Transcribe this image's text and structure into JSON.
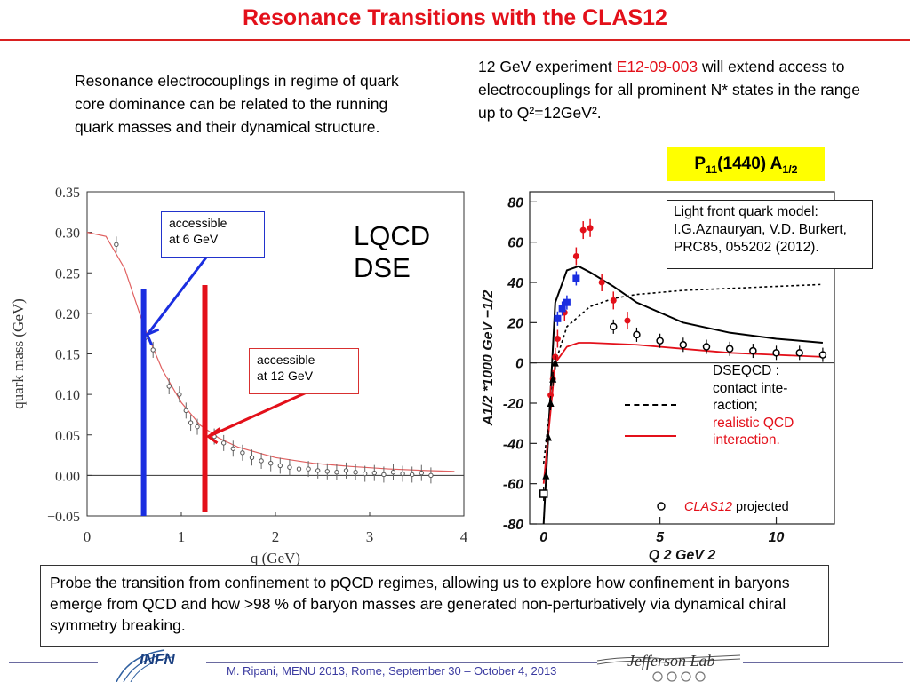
{
  "title": "Resonance Transitions with the  CLAS12",
  "left_text": "Resonance electrocouplings in regime of quark core dominance can be related to the running quark masses and their dynamical structure.",
  "right_text": {
    "part1": "12 GeV experiment ",
    "experiment": "E12-09-003",
    "part2": " will extend access to electrocouplings  for all prominent N* states in the range up to ",
    "q2_range": "Q²=12GeV²."
  },
  "badge": {
    "label_main": "P",
    "label_sub": "11",
    "label_rest": "(1440) A",
    "label_sub2": "1/2"
  },
  "colors": {
    "accent_red": "#e3101a",
    "accent_blue": "#1a2ee0",
    "highlight": "#ffff00"
  },
  "left_chart_annotations": {
    "callout_6": {
      "line1": "accessible",
      "line2": "at 6 GeV"
    },
    "callout_12": {
      "line1": "accessible",
      "line2": "at 12 GeV"
    },
    "model_line1": "LQCD",
    "model_line2": "DSE"
  },
  "right_chart_annotations": {
    "model_box": {
      "line1": "Light front quark model:",
      "line2": "I.G.Aznauryan, V.D. Burkert,",
      "line3": "PRC85, 055202 (2012)."
    },
    "dseqcd": {
      "line1": "DSEQCD :",
      "line2": "contact inte-",
      "line3": "raction;",
      "line4": "realistic QCD",
      "line5": "interaction."
    },
    "projected_label": "CLAS12",
    "projected_suffix": " projected"
  },
  "chart_data": [
    {
      "type": "scatter",
      "title": "",
      "xlabel": "q (GeV)",
      "ylabel": "quark mass (GeV)",
      "xlim": [
        0,
        4
      ],
      "ylim": [
        -0.05,
        0.35
      ],
      "x_ticks": [
        "0",
        "1",
        "2",
        "3",
        "4"
      ],
      "y_ticks": [
        "−0.05",
        "0.00",
        "0.05",
        "0.10",
        "0.15",
        "0.20",
        "0.25",
        "0.30",
        "0.35"
      ],
      "series": [
        {
          "x": [
            0.31,
            0.62,
            0.7,
            0.87,
            0.98,
            1.05,
            1.1,
            1.17,
            1.25,
            1.35,
            1.45,
            1.55,
            1.65,
            1.75,
            1.85,
            1.95,
            2.05,
            2.15,
            2.25,
            2.35,
            2.45,
            2.55,
            2.65,
            2.75,
            2.85,
            2.95,
            3.05,
            3.15,
            3.25,
            3.35,
            3.45,
            3.55,
            3.65
          ],
          "y": [
            0.285,
            0.17,
            0.155,
            0.11,
            0.1,
            0.08,
            0.065,
            0.06,
            0.05,
            0.048,
            0.04,
            0.033,
            0.028,
            0.022,
            0.018,
            0.015,
            0.012,
            0.01,
            0.008,
            0.008,
            0.006,
            0.005,
            0.004,
            0.006,
            0.004,
            0.002,
            0.003,
            0.001,
            0.004,
            0.002,
            0.001,
            0.003,
            0.0
          ]
        },
        {
          "x": [
            0.0,
            0.2,
            0.4,
            0.6,
            0.8,
            1.0,
            1.2,
            1.4,
            1.6,
            2.0,
            2.4,
            2.8,
            3.2,
            3.6,
            3.9
          ],
          "y": [
            0.3,
            0.295,
            0.255,
            0.185,
            0.13,
            0.09,
            0.062,
            0.046,
            0.035,
            0.022,
            0.015,
            0.011,
            0.008,
            0.006,
            0.005
          ]
        }
      ],
      "markers": {
        "accessible_6GeV_q": 0.6,
        "accessible_12GeV_q": 1.25
      }
    },
    {
      "type": "scatter",
      "title": "",
      "xlabel": "Q 2 GeV 2",
      "ylabel": "A1/2 *1000 GeV −1/2",
      "xlim": [
        -0.6,
        12.5
      ],
      "ylim": [
        -80,
        85
      ],
      "x_ticks": [
        "0",
        "5",
        "10"
      ],
      "y_ticks": [
        "80",
        "60",
        "40",
        "20",
        "0",
        "-20",
        "-40",
        "-60",
        "-80"
      ],
      "series": [
        {
          "name": "CLAS12",
          "x": [
            3.0,
            4.0,
            5.0,
            6.0,
            7.0,
            8.0,
            9.0,
            10.0,
            11.0,
            12.0
          ],
          "y": [
            18,
            14,
            11,
            9,
            8,
            7,
            6,
            5,
            5,
            4
          ]
        },
        {
          "x": [
            0.3,
            0.4,
            0.5,
            0.6,
            0.9,
            1.4,
            1.7,
            2.0,
            2.5,
            3.0,
            3.6
          ],
          "y": [
            -16,
            -8,
            3,
            12,
            25,
            53,
            66,
            67,
            40,
            31,
            21
          ]
        },
        {
          "x": [
            0.6,
            0.8,
            1.0,
            1.4
          ],
          "y": [
            22,
            27,
            30,
            42
          ]
        },
        {
          "x": [
            0.0,
            0.1,
            0.2,
            0.3,
            0.4,
            0.5
          ],
          "y": [
            -65,
            -56,
            -37,
            -20,
            -8,
            0
          ]
        },
        {
          "x": [
            0.0,
            0.5,
            1.0,
            1.5,
            2.0,
            3.0,
            4.0,
            6.0,
            8.0,
            10.0,
            12.0
          ],
          "y": [
            -80,
            30,
            46,
            48,
            45,
            38,
            30,
            20,
            15,
            12,
            10
          ]
        },
        {
          "x": [
            0.0,
            0.5,
            1.0,
            2.0,
            3.0,
            4.0,
            6.0,
            8.0,
            10.0,
            12.0
          ],
          "y": [
            -50,
            0,
            18,
            28,
            32,
            34,
            36,
            37,
            38,
            39
          ]
        },
        {
          "x": [
            0.0,
            0.5,
            1.0,
            1.5,
            2.0,
            4.0,
            6.0,
            8.0,
            10.0,
            12.0
          ],
          "y": [
            -60,
            0,
            8,
            10,
            10,
            9,
            7,
            5,
            4,
            3
          ]
        }
      ]
    }
  ],
  "bottom_text": "Probe the transition from confinement to pQCD regimes, allowing us to explore how confinement in baryons emerge from QCD and how >98 % of baryon masses are generated non-perturbatively via  dynamical chiral symmetry  breaking.",
  "footer": {
    "citation": "M. Ripani, MENU 2013, Rome, September 30 – October 4, 2013",
    "infn_logo": "INFN",
    "jlab_logo": "Jefferson Lab"
  }
}
